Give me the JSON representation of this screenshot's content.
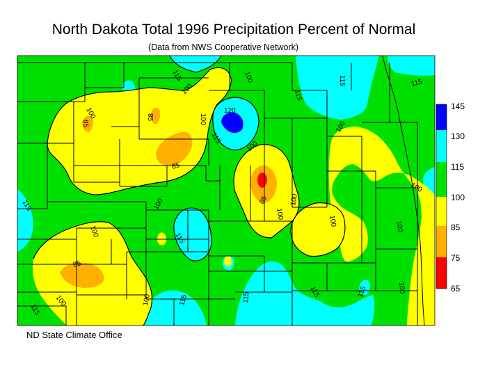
{
  "title": "North Dakota Total 1996 Precipitation Percent of Normal",
  "subtitle": "(Data from NWS Cooperative Network)",
  "credit": "ND State Climate Office",
  "colors": {
    "c65": "#ff0000",
    "c75": "#ffb000",
    "c85": "#ffff00",
    "c100": "#00e000",
    "c115": "#00ffff",
    "c130": "#0000ff"
  },
  "legend": [
    "145",
    "130",
    "115",
    "100",
    "85",
    "75",
    "65"
  ],
  "contour_labels": [
    "115",
    "100",
    "100",
    "115",
    "115",
    "115",
    "100",
    "85",
    "85",
    "100",
    "120",
    "115",
    "100",
    "85",
    "85",
    "100",
    "100",
    "100",
    "100",
    "100",
    "100",
    "100",
    "115",
    "100",
    "85",
    "115",
    "100",
    "100",
    "115",
    "115",
    "115",
    "115",
    "100",
    "115"
  ]
}
